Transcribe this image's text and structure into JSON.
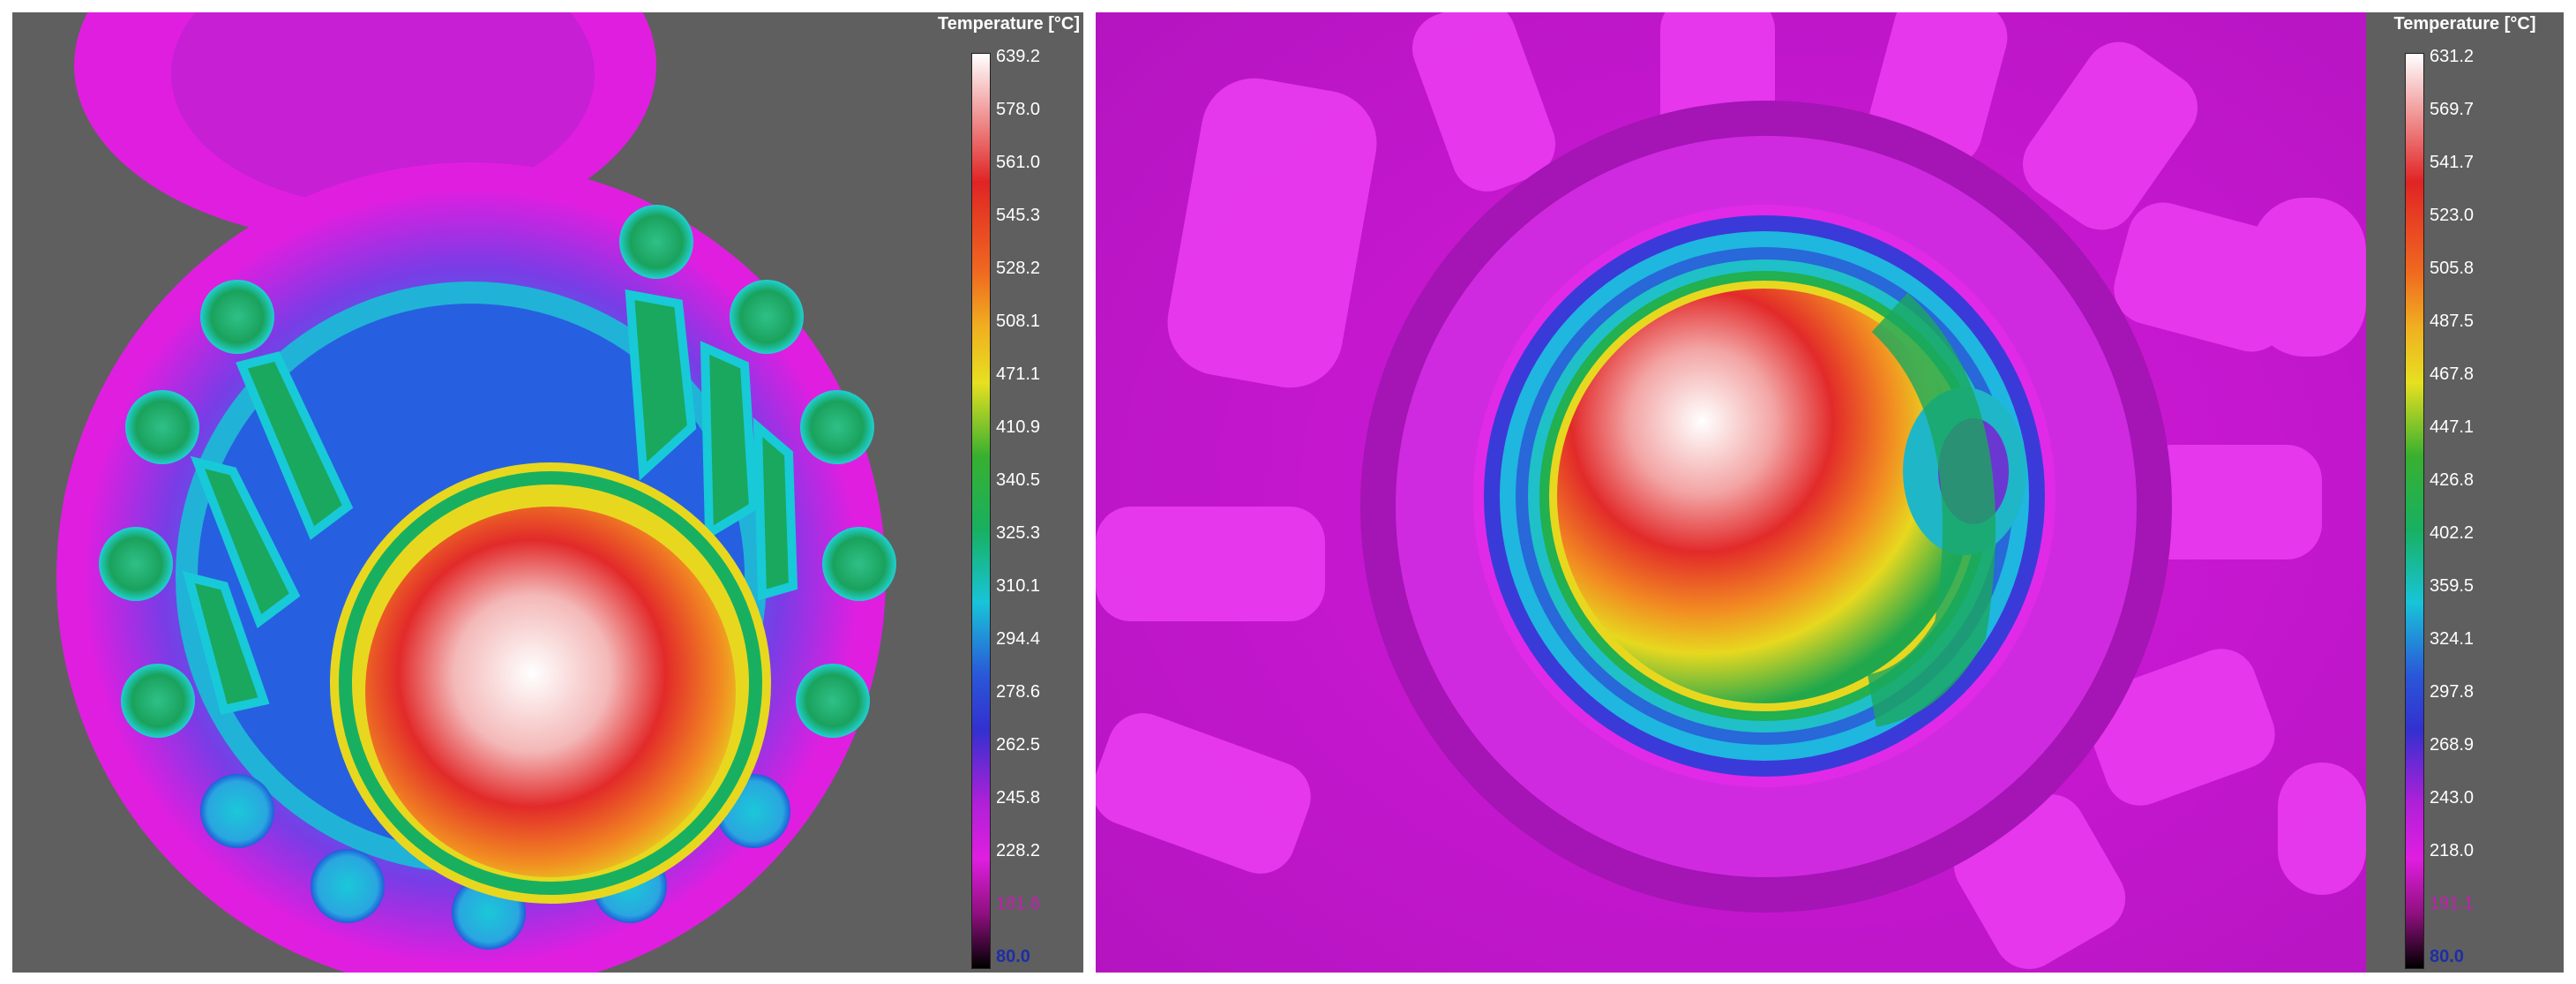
{
  "left_panel": {
    "legend": {
      "title": "Temperature [°C]",
      "ticks": [
        "639.2",
        "578.0",
        "561.0",
        "545.3",
        "528.2",
        "508.1",
        "471.1",
        "410.9",
        "340.5",
        "325.3",
        "310.1",
        "294.4",
        "278.6",
        "262.5",
        "245.8",
        "228.2",
        "181.6",
        "80.0"
      ]
    }
  },
  "right_panel": {
    "legend": {
      "title": "Temperature [°C]",
      "ticks": [
        "631.2",
        "569.7",
        "541.7",
        "523.0",
        "505.8",
        "487.5",
        "467.8",
        "447.1",
        "426.8",
        "402.2",
        "359.5",
        "324.1",
        "297.8",
        "268.9",
        "243.0",
        "218.0",
        "191.1",
        "80.0"
      ]
    }
  },
  "colors": {
    "background": "#5f5f5f",
    "cold": "#e01ee0",
    "blue": "#2a57d8",
    "cyan": "#18c4d8",
    "green": "#18b060",
    "yellow": "#e6e020",
    "orange": "#f08020",
    "red": "#e02424",
    "hot": "#ffffff"
  }
}
